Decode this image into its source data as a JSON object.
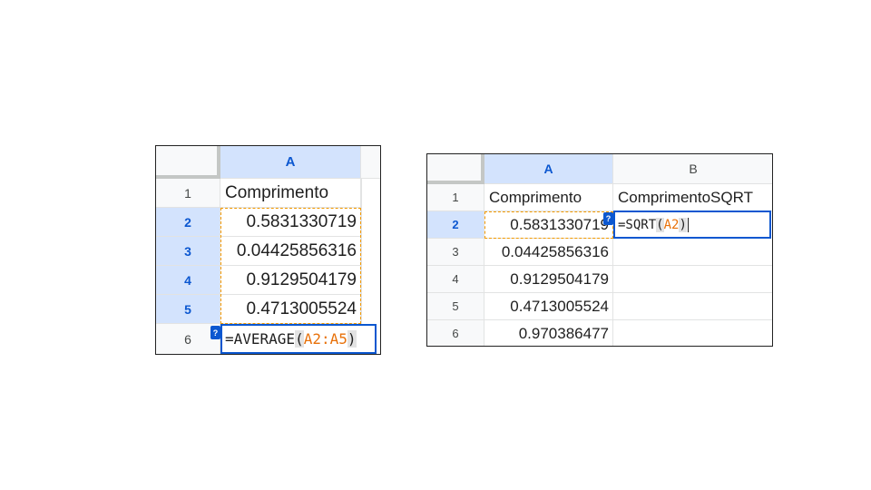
{
  "left_sheet": {
    "column_header": "A",
    "row_numbers": [
      "1",
      "2",
      "3",
      "4",
      "5",
      "6"
    ],
    "header_cell": "Comprimento",
    "values": [
      "0.5831330719",
      "0.04425856316",
      "0.9129504179",
      "0.4713005524"
    ],
    "formula": {
      "prefix": "=AVERAGE",
      "open": "(",
      "ref": "A2:A5",
      "close": ")"
    },
    "help_badge": "?"
  },
  "right_sheet": {
    "column_headers": [
      "A",
      "B"
    ],
    "row_numbers": [
      "1",
      "2",
      "3",
      "4",
      "5",
      "6"
    ],
    "header_a": "Comprimento",
    "header_b": "ComprimentoSQRT",
    "values": [
      "0.5831330719",
      "0.04425856316",
      "0.9129504179",
      "0.4713005524",
      "0.970386477"
    ],
    "formula": {
      "prefix": "=SQRT",
      "open": "(",
      "ref": "A2",
      "close": ")"
    },
    "help_badge": "?"
  },
  "colors": {
    "selection_blue": "#0b57d0",
    "selection_header_bg": "#d3e3fd",
    "reference_orange": "#f29900"
  },
  "icons": [
    "help-icon"
  ]
}
